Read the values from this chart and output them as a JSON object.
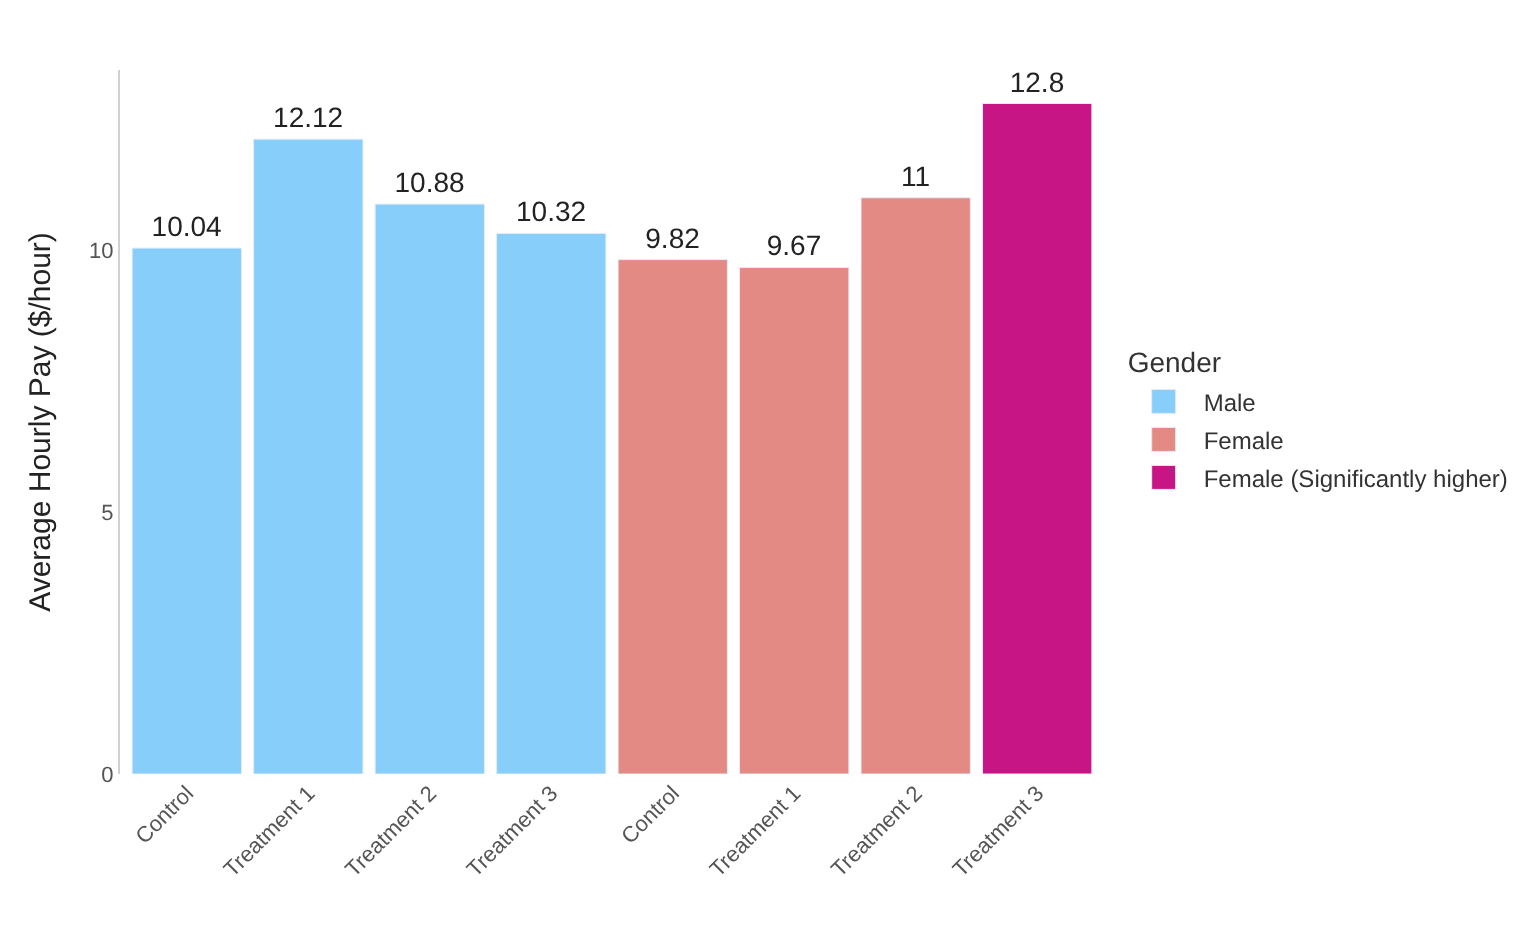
{
  "chart_data": {
    "type": "bar",
    "ylabel": "Average Hourly Pay ($/hour)",
    "legend_title": "Gender",
    "categories": [
      "Control",
      "Treatment 1",
      "Treatment 2",
      "Treatment 3",
      "Control",
      "Treatment 1",
      "Treatment 2",
      "Treatment 3"
    ],
    "series": [
      {
        "name": "Male",
        "color": "#87cefa",
        "values": [
          10.04,
          12.12,
          10.88,
          10.32,
          null,
          null,
          null,
          null
        ]
      },
      {
        "name": "Female",
        "color": "#e48a85",
        "values": [
          null,
          null,
          null,
          null,
          9.82,
          9.67,
          11,
          null
        ]
      },
      {
        "name": "Female (Significantly higher)",
        "color": "#c71585",
        "values": [
          null,
          null,
          null,
          null,
          null,
          null,
          null,
          12.8
        ]
      }
    ],
    "ylim": [
      0,
      13.44
    ],
    "yticks": [
      0,
      5,
      10
    ],
    "legend": "right",
    "data_labels": true
  }
}
